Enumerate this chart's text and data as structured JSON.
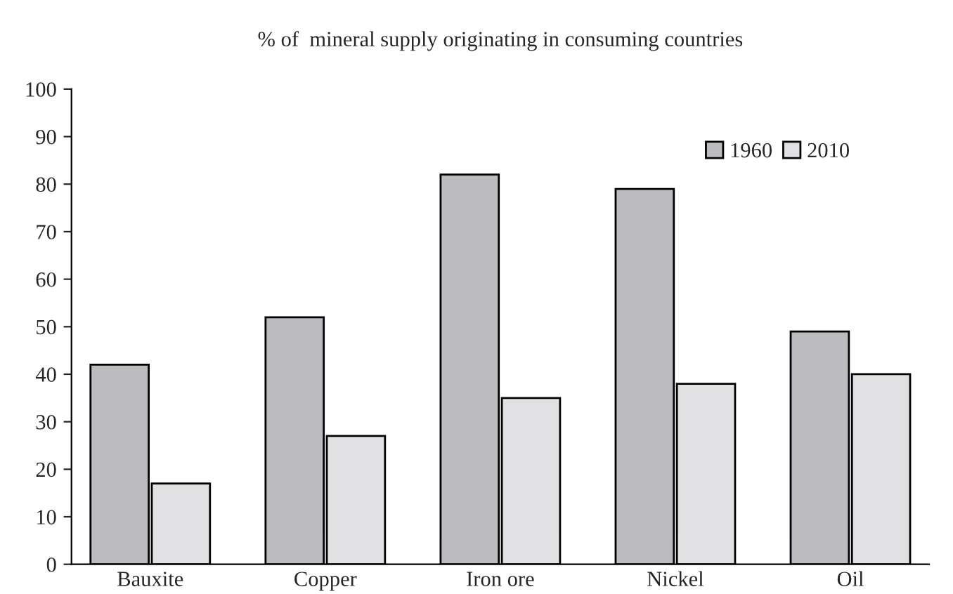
{
  "chart_data": {
    "type": "bar",
    "title": "% of  mineral supply originating in consuming countries",
    "categories": [
      "Bauxite",
      "Copper",
      "Iron ore",
      "Nickel",
      "Oil"
    ],
    "series": [
      {
        "name": "1960",
        "color": "#bcbcc0",
        "values": [
          42,
          52,
          82,
          79,
          49
        ]
      },
      {
        "name": "2010",
        "color": "#e1e1e3",
        "values": [
          17,
          27,
          35,
          38,
          40
        ]
      }
    ],
    "ylim": [
      0,
      100
    ],
    "yticks": [
      0,
      10,
      20,
      30,
      40,
      50,
      60,
      70,
      80,
      90,
      100
    ],
    "grid": false,
    "legend": "top right"
  }
}
